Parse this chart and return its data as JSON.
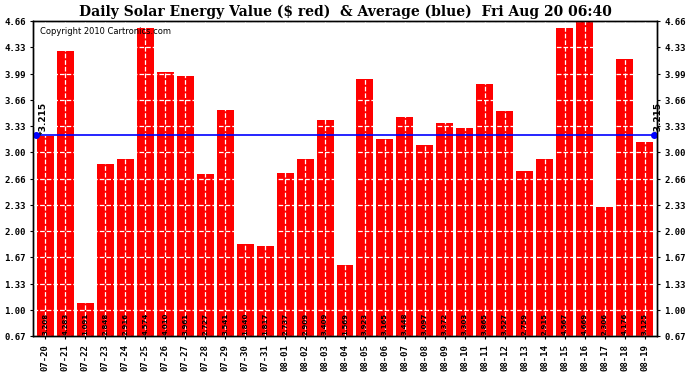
{
  "title": "Daily Solar Energy Value ($ red)  & Average (blue)  Fri Aug 20 06:40",
  "copyright": "Copyright 2010 Cartronics.com",
  "average": 3.215,
  "average_label": "*3.215",
  "bar_color": "#FF0000",
  "avg_line_color": "#0000FF",
  "background_color": "#FFFFFF",
  "plot_bg_color": "#FFFFFF",
  "categories": [
    "07-20",
    "07-21",
    "07-22",
    "07-23",
    "07-24",
    "07-25",
    "07-26",
    "07-27",
    "07-28",
    "07-29",
    "07-30",
    "07-31",
    "08-01",
    "08-02",
    "08-03",
    "08-04",
    "08-05",
    "08-06",
    "08-07",
    "08-08",
    "08-09",
    "08-10",
    "08-11",
    "08-12",
    "08-13",
    "08-14",
    "08-15",
    "08-16",
    "08-17",
    "08-18",
    "08-19"
  ],
  "values": [
    3.208,
    4.283,
    1.091,
    2.848,
    2.916,
    4.574,
    4.01,
    3.961,
    2.727,
    3.541,
    1.84,
    1.817,
    2.737,
    2.909,
    3.409,
    1.569,
    3.923,
    3.165,
    3.448,
    3.097,
    3.372,
    3.303,
    3.865,
    3.527,
    2.759,
    2.915,
    4.567,
    4.669,
    2.306,
    4.176,
    3.125
  ],
  "ylim_min": 0.67,
  "ylim_max": 4.66,
  "yticks": [
    0.67,
    1.0,
    1.33,
    1.67,
    2.0,
    2.33,
    2.66,
    3.0,
    3.33,
    3.66,
    3.99,
    4.33,
    4.66
  ],
  "value_fontsize": 5.0,
  "avg_fontsize": 6.5,
  "title_fontsize": 10,
  "copyright_fontsize": 6.0,
  "tick_fontsize": 6.5,
  "bar_width": 0.85
}
